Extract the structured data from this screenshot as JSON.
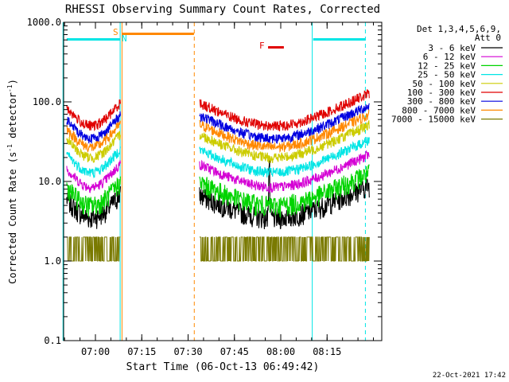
{
  "chart_data": {
    "type": "line",
    "title": "RHESSI Observing Summary Count Rates, Corrected",
    "xlabel": "Start Time (06-Oct-13 06:49:42)",
    "ylabel_main": "Corrected Count Rate (s",
    "ylabel_sup1": "-1",
    "ylabel_mid": " detector",
    "ylabel_sup2": "-1",
    "ylabel_end": ")",
    "y_scale": "log",
    "ylim": [
      0.1,
      1000
    ],
    "xlim_minutes": [
      0,
      103
    ],
    "x_ticks": [
      {
        "t": 10.3,
        "label": "07:00"
      },
      {
        "t": 25.3,
        "label": "07:15"
      },
      {
        "t": 40.3,
        "label": "07:30"
      },
      {
        "t": 55.3,
        "label": "07:45"
      },
      {
        "t": 70.3,
        "label": "08:00"
      },
      {
        "t": 85.3,
        "label": "08:15"
      }
    ],
    "y_ticks": [
      {
        "v": 0.1,
        "label": "0.1"
      },
      {
        "v": 1,
        "label": "1.0"
      },
      {
        "v": 10,
        "label": "10.0"
      },
      {
        "v": 100,
        "label": "100.0"
      },
      {
        "v": 1000,
        "label": "1000.0"
      }
    ],
    "legend_header": [
      "Det 1,3,4,5,6,9,",
      "Att 0"
    ],
    "legend_position": "right",
    "series": [
      {
        "name": "3 - 6 keV",
        "color": "#000000",
        "base": 3.5
      },
      {
        "name": "6 - 12 keV",
        "color": "#d400d4",
        "base": 8.5
      },
      {
        "name": "12 - 25 keV",
        "color": "#00d400",
        "base": 5.0
      },
      {
        "name": "25 - 50 keV",
        "color": "#00e5e5",
        "base": 13
      },
      {
        "name": "50 - 100 keV",
        "color": "#cccc00",
        "base": 20
      },
      {
        "name": "100 - 300 keV",
        "color": "#e00000",
        "base": 50
      },
      {
        "name": "300 - 800 keV",
        "color": "#0000e0",
        "base": 35
      },
      {
        "name": "800 - 7000 keV",
        "color": "#ff8800",
        "base": 27
      },
      {
        "name": "7000 - 15000 keV",
        "color": "#7a7a00",
        "base": 1.7
      }
    ],
    "data_segments_minutes": [
      [
        1,
        18.5
      ],
      [
        44,
        99
      ]
    ],
    "markers": [
      {
        "label": "S",
        "color": "#ff8800"
      },
      {
        "label": "N",
        "color": "#00e5e5"
      },
      {
        "label": "F",
        "color": "#e00000"
      }
    ],
    "footer_date": "22-Oct-2021 17:42"
  }
}
